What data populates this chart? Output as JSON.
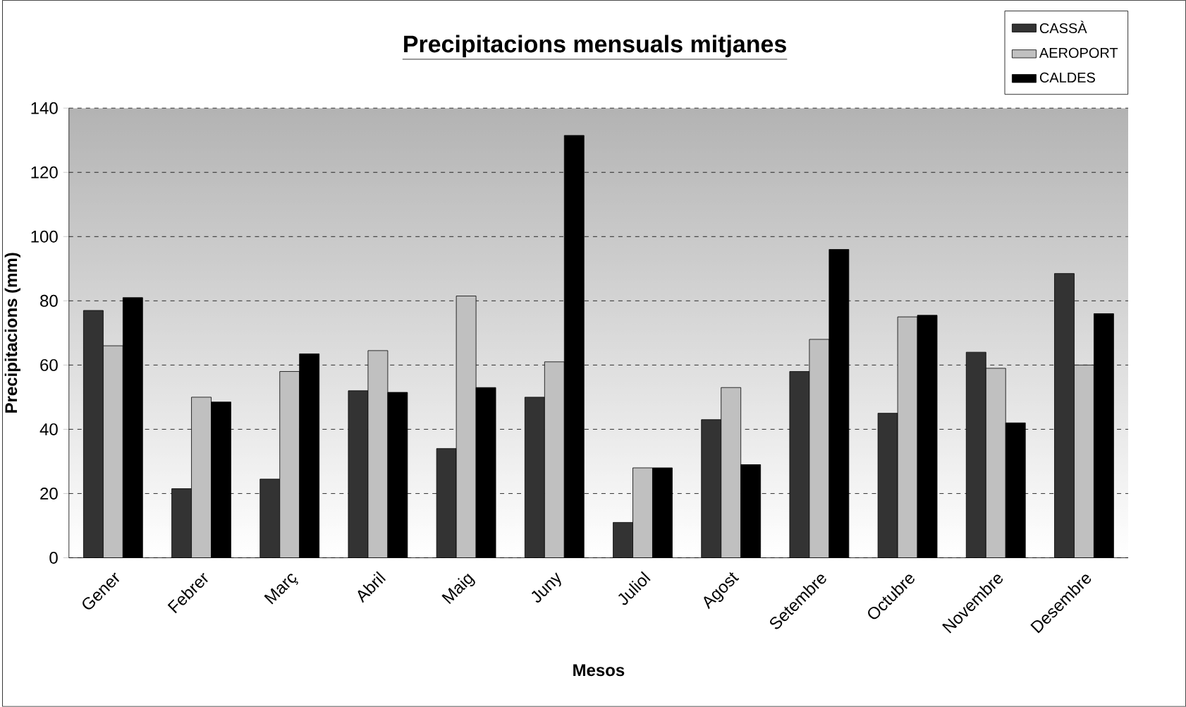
{
  "chart_data": {
    "type": "bar",
    "title": "Precipitacions mensuals mitjanes",
    "xlabel": "Mesos",
    "ylabel": "Precipitacions (mm)",
    "categories": [
      "Gener",
      "Febrer",
      "Març",
      "Abril",
      "Maig",
      "Juny",
      "Juliol",
      "Agost",
      "Setembre",
      "Octubre",
      "Novembre",
      "Desembre"
    ],
    "series": [
      {
        "name": "CASSÀ",
        "color": "#333333",
        "values": [
          77,
          21.5,
          24.5,
          52,
          34,
          50,
          11,
          43,
          58,
          45,
          64,
          88.5
        ]
      },
      {
        "name": "AEROPORT",
        "color": "#c0c0c0",
        "values": [
          66,
          50,
          58,
          64.5,
          81.5,
          61,
          28,
          53,
          68,
          75,
          59,
          60
        ]
      },
      {
        "name": "CALDES",
        "color": "#000000",
        "values": [
          81,
          48.5,
          63.5,
          51.5,
          53,
          131.5,
          28,
          29,
          96,
          75.5,
          42,
          76
        ]
      }
    ],
    "ylim": [
      0,
      140
    ],
    "yticks": [
      0,
      20,
      40,
      60,
      80,
      100,
      120,
      140
    ],
    "grid": "y",
    "legend": "top right"
  }
}
